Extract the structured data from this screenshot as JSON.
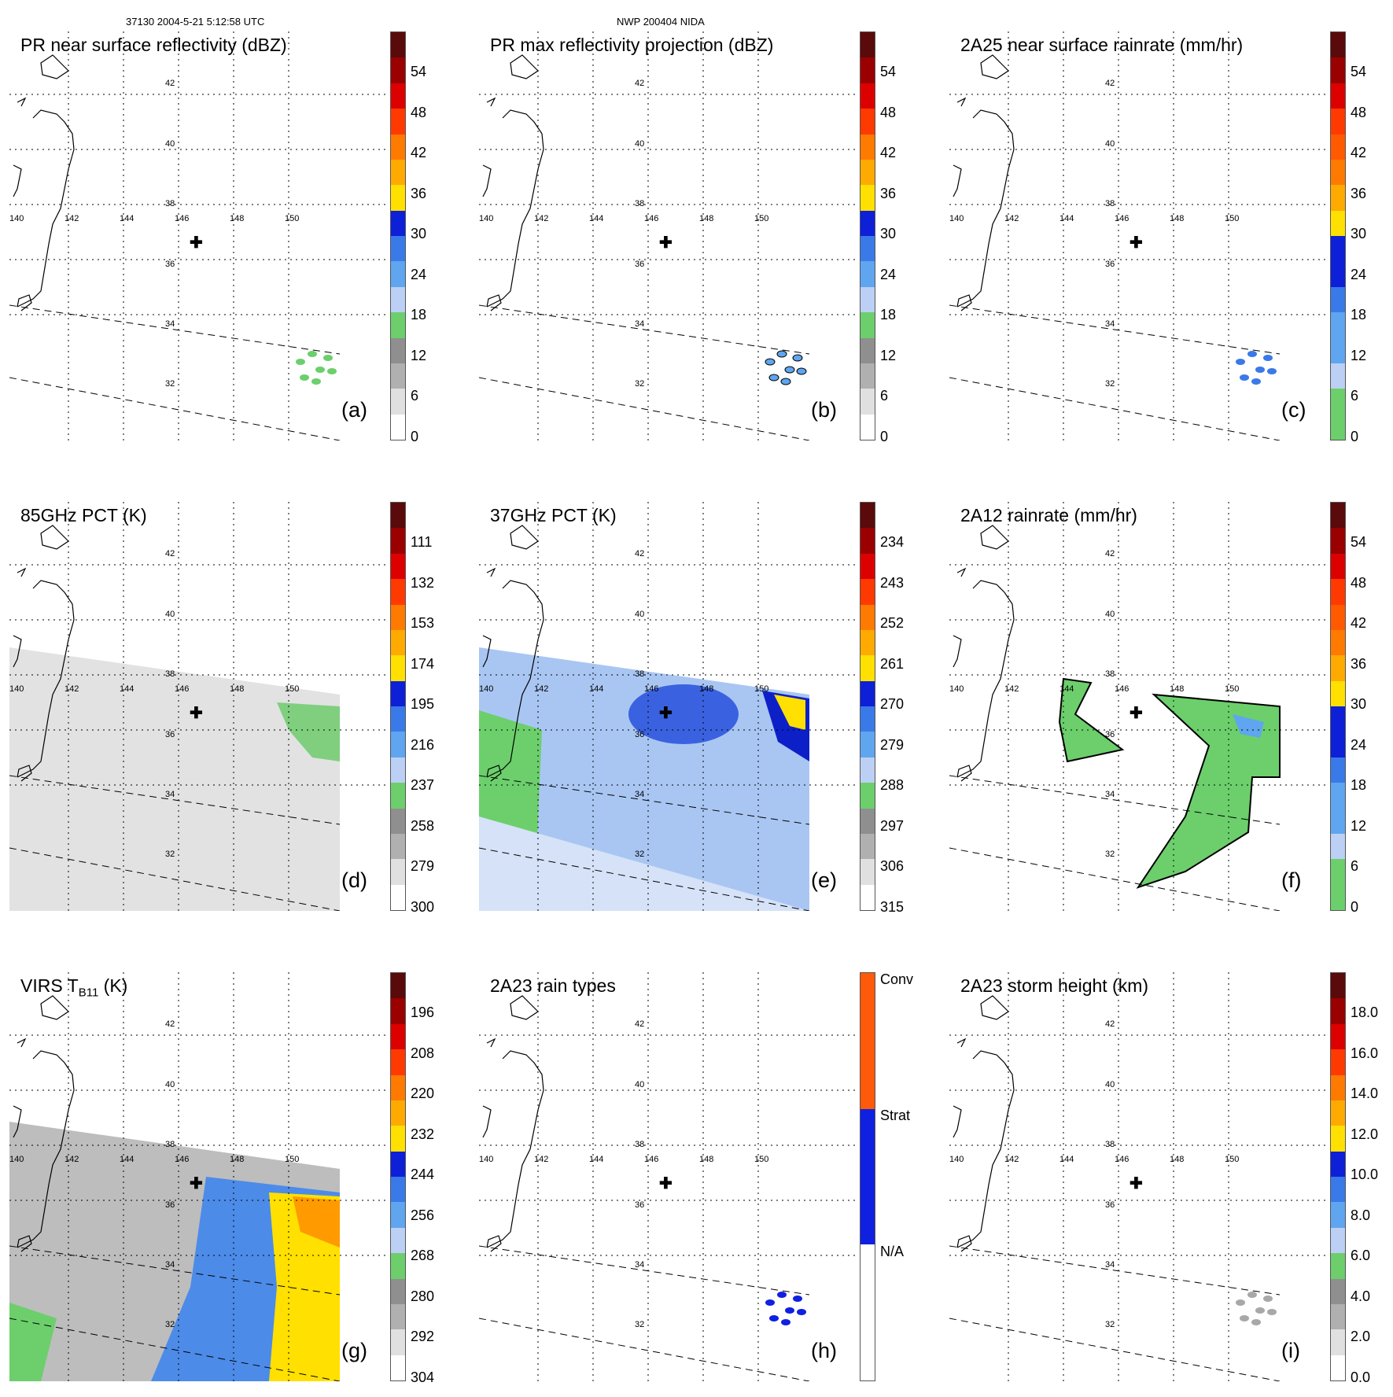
{
  "header": {
    "left": "37130 2004-5-21 5:12:58 UTC",
    "center": "NWP 200404 NIDA"
  },
  "axes": {
    "lon_labels": [
      "140",
      "142",
      "144",
      "146",
      "148",
      "150"
    ],
    "lat_labels": [
      "42",
      "40",
      "38",
      "36",
      "34",
      "32"
    ]
  },
  "center_marker": "✚",
  "panels": [
    {
      "title": "PR near surface reflectivity (dBZ)",
      "label": "(a)",
      "colorbar": {
        "ticks": [
          "54",
          "48",
          "42",
          "36",
          "30",
          "24",
          "18",
          "12",
          "6",
          "0"
        ],
        "colors": [
          "#ffffff",
          "#e0e0e0",
          "#b0b0b0",
          "#8f8f8f",
          "#6ccf6c",
          "#bcd0f5",
          "#5fa5ef",
          "#3a7ae8",
          "#0d20d8",
          "#ffe000",
          "#ffaa00",
          "#ff7a00",
          "#ff3a00",
          "#dd0000",
          "#9a0000",
          "#5a0a0a"
        ]
      }
    },
    {
      "title": "PR max reflectivity projection (dBZ)",
      "label": "(b)",
      "colorbar": {
        "ticks": [
          "54",
          "48",
          "42",
          "36",
          "30",
          "24",
          "18",
          "12",
          "6",
          "0"
        ],
        "colors": [
          "#ffffff",
          "#e0e0e0",
          "#b0b0b0",
          "#8f8f8f",
          "#6ccf6c",
          "#bcd0f5",
          "#5fa5ef",
          "#3a7ae8",
          "#0d20d8",
          "#ffe000",
          "#ffaa00",
          "#ff7a00",
          "#ff3a00",
          "#dd0000",
          "#9a0000",
          "#5a0a0a"
        ]
      }
    },
    {
      "title": "2A25 near surface rainrate (mm/hr)",
      "label": "(c)",
      "colorbar": {
        "ticks": [
          "54",
          "48",
          "42",
          "36",
          "30",
          "24",
          "18",
          "12",
          "6",
          "0"
        ],
        "colors": [
          "#6ccf6c",
          "#6ccf6c",
          "#bcd0f5",
          "#5fa5ef",
          "#5fa5ef",
          "#3a7ae8",
          "#0d20d8",
          "#0d20d8",
          "#ffe000",
          "#ffaa00",
          "#ff7a00",
          "#ff5a00",
          "#ff3a00",
          "#dd0000",
          "#9a0000",
          "#5a0a0a"
        ]
      }
    },
    {
      "title": "85GHz PCT (K)",
      "label": "(d)",
      "colorbar": {
        "ticks": [
          "111",
          "132",
          "153",
          "174",
          "195",
          "216",
          "237",
          "258",
          "279",
          "300"
        ],
        "colors": [
          "#ffffff",
          "#e0e0e0",
          "#b0b0b0",
          "#8f8f8f",
          "#6ccf6c",
          "#bcd0f5",
          "#5fa5ef",
          "#3a7ae8",
          "#0d20d8",
          "#ffe000",
          "#ffaa00",
          "#ff7a00",
          "#ff3a00",
          "#dd0000",
          "#9a0000",
          "#5a0a0a"
        ]
      }
    },
    {
      "title": "37GHz PCT (K)",
      "label": "(e)",
      "colorbar": {
        "ticks": [
          "234",
          "243",
          "252",
          "261",
          "270",
          "279",
          "288",
          "297",
          "306",
          "315"
        ],
        "colors": [
          "#ffffff",
          "#e0e0e0",
          "#b0b0b0",
          "#8f8f8f",
          "#6ccf6c",
          "#bcd0f5",
          "#5fa5ef",
          "#3a7ae8",
          "#0d20d8",
          "#ffe000",
          "#ffaa00",
          "#ff7a00",
          "#ff3a00",
          "#dd0000",
          "#9a0000",
          "#5a0a0a"
        ]
      }
    },
    {
      "title": "2A12 rainrate (mm/hr)",
      "label": "(f)",
      "colorbar": {
        "ticks": [
          "54",
          "48",
          "42",
          "36",
          "30",
          "24",
          "18",
          "12",
          "6",
          "0"
        ],
        "colors": [
          "#6ccf6c",
          "#6ccf6c",
          "#bcd0f5",
          "#5fa5ef",
          "#5fa5ef",
          "#3a7ae8",
          "#0d20d8",
          "#0d20d8",
          "#ffe000",
          "#ffaa00",
          "#ff7a00",
          "#ff5a00",
          "#ff3a00",
          "#dd0000",
          "#9a0000",
          "#5a0a0a"
        ]
      }
    },
    {
      "title": "VIRS T",
      "title_sub": "B11",
      "title_suffix": " (K)",
      "label": "(g)",
      "colorbar": {
        "ticks": [
          "196",
          "208",
          "220",
          "232",
          "244",
          "256",
          "268",
          "280",
          "292",
          "304"
        ],
        "colors": [
          "#ffffff",
          "#e0e0e0",
          "#b0b0b0",
          "#8f8f8f",
          "#6ccf6c",
          "#bcd0f5",
          "#5fa5ef",
          "#3a7ae8",
          "#0d20d8",
          "#ffe000",
          "#ffaa00",
          "#ff7a00",
          "#ff3a00",
          "#dd0000",
          "#9a0000",
          "#5a0a0a"
        ]
      }
    },
    {
      "title": "2A23 rain types",
      "label": "(h)",
      "categorical": [
        "Conv",
        "Strat",
        "N/A"
      ],
      "cat_colors": [
        "#ff5a0a",
        "#1020e0",
        "#ffffff"
      ]
    },
    {
      "title": "2A23 storm height (km)",
      "label": "(i)",
      "colorbar": {
        "ticks": [
          "18.0",
          "16.0",
          "14.0",
          "12.0",
          "10.0",
          "8.0",
          "6.0",
          "4.0",
          "2.0",
          "0.0"
        ],
        "colors": [
          "#ffffff",
          "#e0e0e0",
          "#b0b0b0",
          "#8f8f8f",
          "#6ccf6c",
          "#bcd0f5",
          "#5fa5ef",
          "#3a7ae8",
          "#0d20d8",
          "#ffe000",
          "#ffaa00",
          "#ff7a00",
          "#ff3a00",
          "#dd0000",
          "#9a0000",
          "#5a0a0a"
        ]
      }
    }
  ]
}
